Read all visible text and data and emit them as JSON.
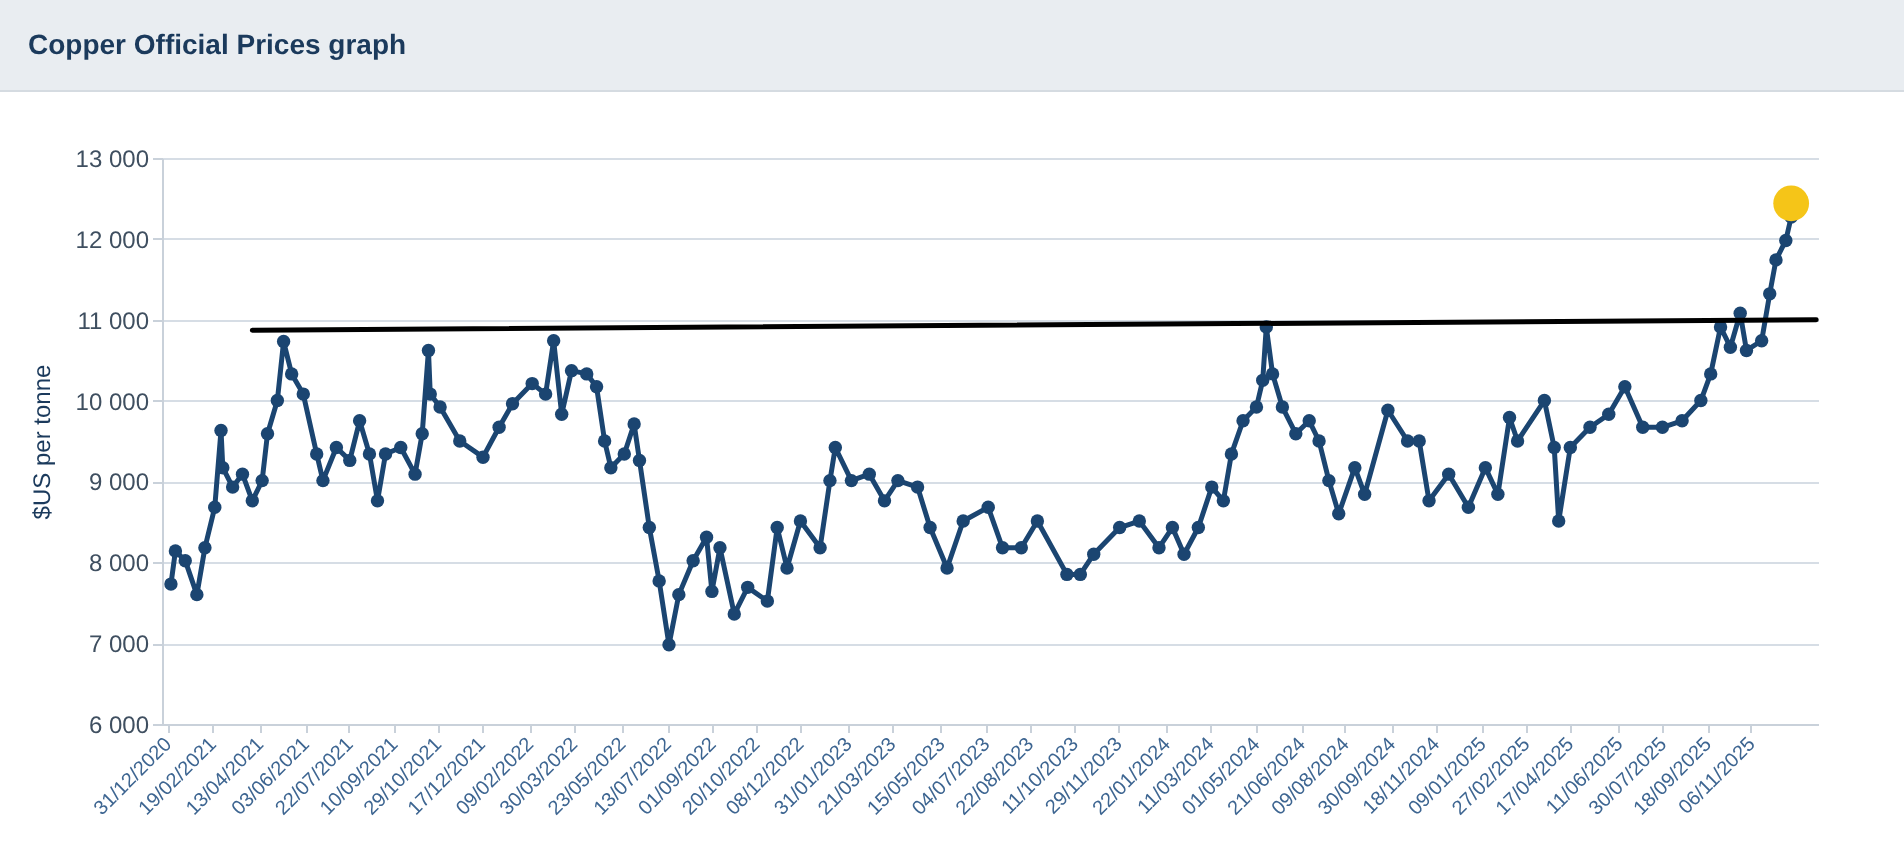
{
  "chart_data": {
    "type": "line",
    "title": "Copper Official Prices graph",
    "ylabel": "$US per tonne",
    "marker": "circle",
    "grid": "y",
    "xlim": [
      "2020-12-25",
      "2026-01-20"
    ],
    "ylim": [
      6000,
      13000
    ],
    "yticks": [
      {
        "value": 6000,
        "label": "6 000"
      },
      {
        "value": 7000,
        "label": "7 000"
      },
      {
        "value": 8000,
        "label": "8 000"
      },
      {
        "value": 9000,
        "label": "9 000"
      },
      {
        "value": 10000,
        "label": "10 000"
      },
      {
        "value": 11000,
        "label": "11 000"
      },
      {
        "value": 12000,
        "label": "12 000"
      },
      {
        "value": 13000,
        "label": "13 000"
      }
    ],
    "xticks": [
      {
        "value": "2020-12-31",
        "label": "31/12/2020"
      },
      {
        "value": "2021-02-19",
        "label": "19/02/2021"
      },
      {
        "value": "2021-04-13",
        "label": "13/04/2021"
      },
      {
        "value": "2021-06-03",
        "label": "03/06/2021"
      },
      {
        "value": "2021-07-22",
        "label": "22/07/2021"
      },
      {
        "value": "2021-09-10",
        "label": "10/09/2021"
      },
      {
        "value": "2021-10-29",
        "label": "29/10/2021"
      },
      {
        "value": "2021-12-17",
        "label": "17/12/2021"
      },
      {
        "value": "2022-02-09",
        "label": "09/02/2022"
      },
      {
        "value": "2022-03-30",
        "label": "30/03/2022"
      },
      {
        "value": "2022-05-23",
        "label": "23/05/2022"
      },
      {
        "value": "2022-07-13",
        "label": "13/07/2022"
      },
      {
        "value": "2022-09-01",
        "label": "01/09/2022"
      },
      {
        "value": "2022-10-20",
        "label": "20/10/2022"
      },
      {
        "value": "2022-12-08",
        "label": "08/12/2022"
      },
      {
        "value": "2023-01-31",
        "label": "31/01/2023"
      },
      {
        "value": "2023-03-21",
        "label": "21/03/2023"
      },
      {
        "value": "2023-05-15",
        "label": "15/05/2023"
      },
      {
        "value": "2023-07-04",
        "label": "04/07/2023"
      },
      {
        "value": "2023-08-22",
        "label": "22/08/2023"
      },
      {
        "value": "2023-10-11",
        "label": "11/10/2023"
      },
      {
        "value": "2023-11-29",
        "label": "29/11/2023"
      },
      {
        "value": "2024-01-22",
        "label": "22/01/2024"
      },
      {
        "value": "2024-03-11",
        "label": "11/03/2024"
      },
      {
        "value": "2024-05-01",
        "label": "01/05/2024"
      },
      {
        "value": "2024-06-21",
        "label": "21/06/2024"
      },
      {
        "value": "2024-08-09",
        "label": "09/08/2024"
      },
      {
        "value": "2024-09-30",
        "label": "30/09/2024"
      },
      {
        "value": "2024-11-18",
        "label": "18/11/2024"
      },
      {
        "value": "2025-01-09",
        "label": "09/01/2025"
      },
      {
        "value": "2025-02-27",
        "label": "27/02/2025"
      },
      {
        "value": "2025-04-17",
        "label": "17/04/2025"
      },
      {
        "value": "2025-06-11",
        "label": "11/06/2025"
      },
      {
        "value": "2025-07-30",
        "label": "30/07/2025"
      },
      {
        "value": "2025-09-18",
        "label": "18/09/2025"
      },
      {
        "value": "2025-11-06",
        "label": "06/11/2025"
      }
    ],
    "series": [
      {
        "color": "#1b4571",
        "x": [
          "2021-01-04",
          "2021-01-09",
          "2021-01-20",
          "2021-02-02",
          "2021-02-11",
          "2021-02-22",
          "2021-03-01",
          "2021-03-03",
          "2021-03-14",
          "2021-03-25",
          "2021-04-05",
          "2021-04-16",
          "2021-04-22",
          "2021-05-03",
          "2021-05-10",
          "2021-05-19",
          "2021-06-01",
          "2021-06-16",
          "2021-06-23",
          "2021-07-08",
          "2021-07-23",
          "2021-08-03",
          "2021-08-14",
          "2021-08-23",
          "2021-09-01",
          "2021-09-18",
          "2021-10-04",
          "2021-10-12",
          "2021-10-19",
          "2021-10-21",
          "2021-11-01",
          "2021-11-23",
          "2021-12-19",
          "2022-01-06",
          "2022-01-21",
          "2022-02-12",
          "2022-02-27",
          "2022-03-08",
          "2022-03-17",
          "2022-03-28",
          "2022-04-14",
          "2022-04-25",
          "2022-05-04",
          "2022-05-11",
          "2022-05-26",
          "2022-06-06",
          "2022-06-12",
          "2022-06-23",
          "2022-07-04",
          "2022-07-15",
          "2022-07-26",
          "2022-08-11",
          "2022-08-26",
          "2022-09-01",
          "2022-09-10",
          "2022-09-26",
          "2022-10-11",
          "2022-11-02",
          "2022-11-13",
          "2022-11-24",
          "2022-12-09",
          "2022-12-31",
          "2023-01-11",
          "2023-01-17",
          "2023-02-04",
          "2023-02-24",
          "2023-03-13",
          "2023-03-28",
          "2023-04-19",
          "2023-05-03",
          "2023-05-22",
          "2023-06-09",
          "2023-07-07",
          "2023-07-23",
          "2023-08-13",
          "2023-08-31",
          "2023-10-03",
          "2023-10-18",
          "2023-11-02",
          "2023-12-01",
          "2023-12-23",
          "2024-01-14",
          "2024-01-29",
          "2024-02-11",
          "2024-02-27",
          "2024-03-13",
          "2024-03-26",
          "2024-04-04",
          "2024-04-17",
          "2024-05-02",
          "2024-05-09",
          "2024-05-13",
          "2024-05-20",
          "2024-05-31",
          "2024-06-15",
          "2024-06-30",
          "2024-07-11",
          "2024-07-22",
          "2024-08-02",
          "2024-08-20",
          "2024-08-31",
          "2024-09-26",
          "2024-10-18",
          "2024-10-31",
          "2024-11-11",
          "2024-12-03",
          "2024-12-25",
          "2025-01-13",
          "2025-01-27",
          "2025-02-09",
          "2025-02-18",
          "2025-03-20",
          "2025-03-31",
          "2025-04-05",
          "2025-04-18",
          "2025-05-10",
          "2025-05-31",
          "2025-06-18",
          "2025-07-08",
          "2025-07-30",
          "2025-08-21",
          "2025-09-11",
          "2025-09-22",
          "2025-10-03",
          "2025-10-14",
          "2025-10-25",
          "2025-11-01",
          "2025-11-18",
          "2025-11-27",
          "2025-12-04",
          "2025-12-15",
          "2025-12-21"
        ],
        "values": [
          7730,
          8140,
          8020,
          7600,
          8180,
          8680,
          9630,
          9170,
          8930,
          9090,
          8760,
          9010,
          9590,
          10000,
          10730,
          10330,
          10080,
          9340,
          9010,
          9420,
          9260,
          9750,
          9340,
          8760,
          9340,
          9420,
          9090,
          9590,
          10620,
          10080,
          9920,
          9500,
          9300,
          9670,
          9960,
          10210,
          10080,
          10740,
          9830,
          10370,
          10330,
          10170,
          9500,
          9170,
          9340,
          9710,
          9260,
          8430,
          7770,
          6980,
          7600,
          8020,
          8310,
          7640,
          8180,
          7360,
          7690,
          7520,
          8430,
          7930,
          8510,
          8180,
          9010,
          9420,
          9010,
          9090,
          8760,
          9010,
          8930,
          8430,
          7930,
          8510,
          8680,
          8180,
          8180,
          8510,
          7850,
          7850,
          8100,
          8430,
          8510,
          8180,
          8430,
          8100,
          8430,
          8930,
          8760,
          9340,
          9750,
          9920,
          10250,
          10910,
          10330,
          9920,
          9590,
          9750,
          9500,
          9010,
          8600,
          9170,
          8840,
          9880,
          9500,
          9500,
          8760,
          9090,
          8680,
          9170,
          8840,
          9790,
          9500,
          10000,
          9420,
          8510,
          9420,
          9670,
          9830,
          10170,
          9670,
          9670,
          9750,
          10000,
          10330,
          10910,
          10660,
          11080,
          10620,
          10740,
          11320,
          11740,
          11980,
          12270
        ]
      },
      {
        "type": "line",
        "color": "#000000",
        "marker": "none",
        "x": [
          "2021-04-05",
          "2026-01-18"
        ],
        "values": [
          10870,
          11000
        ]
      },
      {
        "type": "scatter",
        "color": "#f5c518",
        "x": [
          "2025-12-21"
        ],
        "values": [
          12440
        ]
      }
    ]
  }
}
